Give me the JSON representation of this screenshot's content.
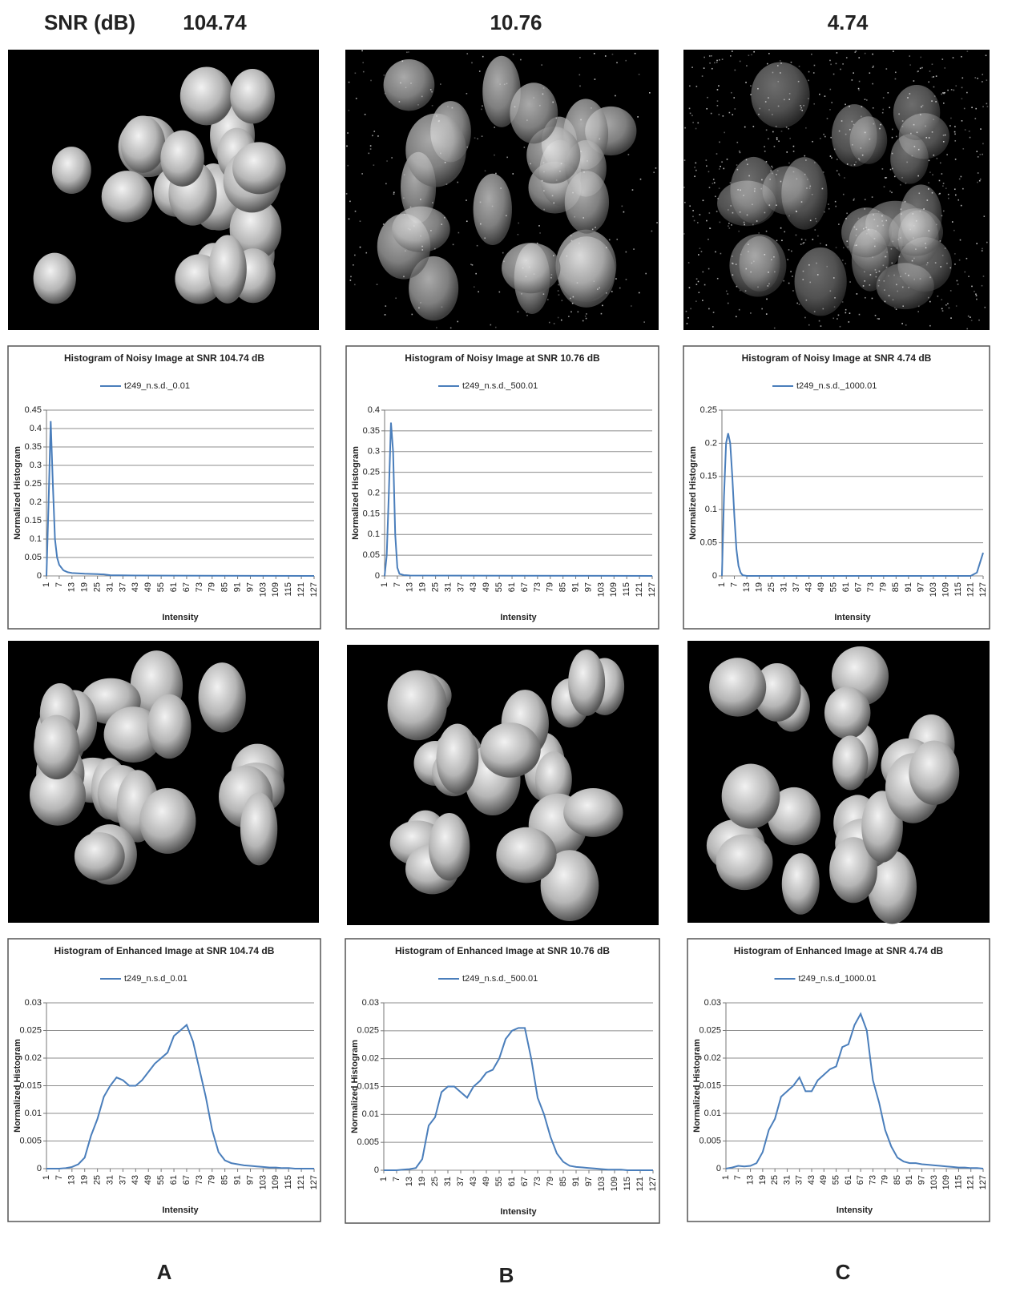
{
  "header": {
    "label": "SNR (dB)",
    "columns": [
      "104.74",
      "10.76",
      "4.74"
    ]
  },
  "panels": [
    "A",
    "B",
    "C"
  ],
  "chart_data": [
    {
      "type": "line",
      "title": "Histogram of Noisy Image at SNR 104.74 dB",
      "x_label": "Intensity",
      "y_label": "Normalized Histogram",
      "x": [
        1,
        2,
        3,
        4,
        5,
        6,
        7,
        9,
        11,
        13,
        19,
        25,
        28,
        31,
        43,
        127
      ],
      "series": [
        {
          "name": "t249_n.s.d._0.01",
          "color": "#4a7ebb",
          "values": [
            0,
            0.2,
            0.42,
            0.25,
            0.1,
            0.05,
            0.03,
            0.015,
            0.01,
            0.008,
            0.006,
            0.005,
            0.004,
            0.002,
            0.001,
            0
          ]
        }
      ],
      "xlim": [
        1,
        127
      ],
      "xticks": [
        1,
        7,
        13,
        19,
        25,
        31,
        37,
        43,
        49,
        55,
        61,
        67,
        73,
        79,
        85,
        91,
        97,
        103,
        109,
        115,
        121,
        127
      ],
      "ylim": [
        0,
        0.45
      ],
      "yticks": [
        0,
        0.05,
        0.1,
        0.15,
        0.2,
        0.25,
        0.3,
        0.35,
        0.4,
        0.45
      ],
      "grid": true
    },
    {
      "type": "line",
      "title": "Histogram of Noisy Image at SNR 10.76 dB",
      "x_label": "Intensity",
      "y_label": "Normalized Histogram",
      "x": [
        1,
        2,
        3,
        4,
        5,
        6,
        7,
        8,
        10,
        13,
        127
      ],
      "series": [
        {
          "name": "t249_n.s.d._500.01",
          "color": "#4a7ebb",
          "values": [
            0,
            0.05,
            0.2,
            0.37,
            0.3,
            0.1,
            0.02,
            0.005,
            0.002,
            0.001,
            0
          ]
        }
      ],
      "xlim": [
        1,
        127
      ],
      "xticks": [
        1,
        7,
        13,
        19,
        25,
        31,
        37,
        43,
        49,
        55,
        61,
        67,
        73,
        79,
        85,
        91,
        97,
        103,
        109,
        115,
        121,
        127
      ],
      "ylim": [
        0,
        0.4
      ],
      "yticks": [
        0,
        0.05,
        0.1,
        0.15,
        0.2,
        0.25,
        0.3,
        0.35,
        0.4
      ],
      "grid": true
    },
    {
      "type": "line",
      "title": "Histogram of Noisy Image at SNR 4.74 dB",
      "x_label": "Intensity",
      "y_label": "Normalized Histogram",
      "x": [
        1,
        2,
        3,
        4,
        5,
        6,
        7,
        8,
        9,
        10,
        11,
        13,
        121,
        124,
        126,
        127
      ],
      "series": [
        {
          "name": "t249_n.s.d._1000.01",
          "color": "#4a7ebb",
          "values": [
            0,
            0.12,
            0.2,
            0.215,
            0.2,
            0.15,
            0.09,
            0.04,
            0.015,
            0.005,
            0.001,
            0,
            0,
            0.005,
            0.025,
            0.035
          ]
        }
      ],
      "xlim": [
        1,
        127
      ],
      "xticks": [
        1,
        7,
        13,
        19,
        25,
        31,
        37,
        43,
        49,
        55,
        61,
        67,
        73,
        79,
        85,
        91,
        97,
        103,
        109,
        115,
        121,
        127
      ],
      "ylim": [
        0,
        0.25
      ],
      "yticks": [
        0,
        0.05,
        0.1,
        0.15,
        0.2,
        0.25
      ],
      "grid": true
    },
    {
      "type": "line",
      "title": "Histogram of Enhanced Image at SNR 104.74 dB",
      "x_label": "Intensity",
      "y_label": "Normalized Histogram",
      "x": [
        1,
        4,
        7,
        10,
        13,
        16,
        19,
        22,
        25,
        28,
        31,
        34,
        37,
        40,
        43,
        46,
        49,
        52,
        55,
        58,
        61,
        64,
        67,
        70,
        73,
        76,
        79,
        82,
        85,
        88,
        91,
        94,
        97,
        100,
        103,
        106,
        109,
        112,
        115,
        118,
        121,
        124,
        127
      ],
      "series": [
        {
          "name": "t249_n.s.d_0.01",
          "color": "#4a7ebb",
          "values": [
            0,
            0,
            0,
            0.0001,
            0.0003,
            0.0008,
            0.002,
            0.006,
            0.009,
            0.013,
            0.015,
            0.0165,
            0.016,
            0.015,
            0.015,
            0.016,
            0.0175,
            0.019,
            0.02,
            0.021,
            0.024,
            0.025,
            0.026,
            0.023,
            0.018,
            0.013,
            0.007,
            0.003,
            0.0015,
            0.001,
            0.0008,
            0.0006,
            0.0005,
            0.0004,
            0.0003,
            0.0002,
            0.0002,
            0.0001,
            0.0001,
            0,
            0,
            0,
            0
          ]
        }
      ],
      "xlim": [
        1,
        127
      ],
      "xticks": [
        1,
        7,
        13,
        19,
        25,
        31,
        37,
        43,
        49,
        55,
        61,
        67,
        73,
        79,
        85,
        91,
        97,
        103,
        109,
        115,
        121,
        127
      ],
      "ylim": [
        0,
        0.03
      ],
      "yticks": [
        0,
        0.005,
        0.01,
        0.015,
        0.02,
        0.025,
        0.03
      ],
      "grid": true
    },
    {
      "type": "line",
      "title": "Histogram of Enhanced Image at SNR 10.76 dB",
      "x_label": "Intensity",
      "y_label": "Normalized Histogram",
      "x": [
        1,
        4,
        7,
        10,
        13,
        16,
        19,
        22,
        25,
        28,
        31,
        34,
        37,
        40,
        43,
        46,
        49,
        52,
        55,
        58,
        61,
        64,
        67,
        70,
        73,
        76,
        79,
        82,
        85,
        88,
        91,
        94,
        97,
        100,
        103,
        106,
        109,
        112,
        115,
        118,
        121,
        124,
        127
      ],
      "series": [
        {
          "name": "t249_n.s.d._500.01",
          "color": "#4a7ebb",
          "values": [
            0,
            0,
            0,
            0.0001,
            0.0002,
            0.0004,
            0.002,
            0.008,
            0.0095,
            0.014,
            0.015,
            0.015,
            0.014,
            0.013,
            0.015,
            0.016,
            0.0175,
            0.018,
            0.02,
            0.0235,
            0.025,
            0.0255,
            0.0255,
            0.02,
            0.013,
            0.01,
            0.006,
            0.003,
            0.0015,
            0.0008,
            0.0006,
            0.0005,
            0.0004,
            0.0003,
            0.0002,
            0.0001,
            0.0001,
            0.0001,
            0,
            0,
            0,
            0,
            0
          ]
        }
      ],
      "xlim": [
        1,
        127
      ],
      "xticks": [
        1,
        7,
        13,
        19,
        25,
        31,
        37,
        43,
        49,
        55,
        61,
        67,
        73,
        79,
        85,
        91,
        97,
        103,
        109,
        115,
        121,
        127
      ],
      "ylim": [
        0,
        0.03
      ],
      "yticks": [
        0,
        0.005,
        0.01,
        0.015,
        0.02,
        0.025,
        0.03
      ],
      "grid": true
    },
    {
      "type": "line",
      "title": "Histogram of Enhanced Image at SNR 4.74 dB",
      "x_label": "Intensity",
      "y_label": "Normalized Histogram",
      "x": [
        1,
        4,
        7,
        10,
        13,
        16,
        19,
        22,
        25,
        28,
        31,
        34,
        37,
        40,
        43,
        46,
        49,
        52,
        55,
        58,
        61,
        64,
        67,
        70,
        73,
        76,
        79,
        82,
        85,
        88,
        91,
        94,
        97,
        100,
        103,
        106,
        109,
        112,
        115,
        118,
        121,
        124,
        127
      ],
      "series": [
        {
          "name": "t249_n.s.d_1000.01",
          "color": "#4a7ebb",
          "values": [
            0,
            0.0002,
            0.0005,
            0.0004,
            0.0005,
            0.001,
            0.003,
            0.007,
            0.009,
            0.013,
            0.014,
            0.015,
            0.0165,
            0.014,
            0.014,
            0.016,
            0.017,
            0.018,
            0.0185,
            0.022,
            0.0225,
            0.026,
            0.028,
            0.025,
            0.016,
            0.012,
            0.007,
            0.004,
            0.002,
            0.0013,
            0.001,
            0.001,
            0.0008,
            0.0007,
            0.0006,
            0.0005,
            0.0004,
            0.0003,
            0.0002,
            0.0002,
            0.0001,
            0.0001,
            0
          ]
        }
      ],
      "xlim": [
        1,
        127
      ],
      "xticks": [
        1,
        7,
        13,
        19,
        25,
        31,
        37,
        43,
        49,
        55,
        61,
        67,
        73,
        79,
        85,
        91,
        97,
        103,
        109,
        115,
        121,
        127
      ],
      "ylim": [
        0,
        0.03
      ],
      "yticks": [
        0,
        0.005,
        0.01,
        0.015,
        0.02,
        0.025,
        0.03
      ],
      "grid": true
    }
  ]
}
